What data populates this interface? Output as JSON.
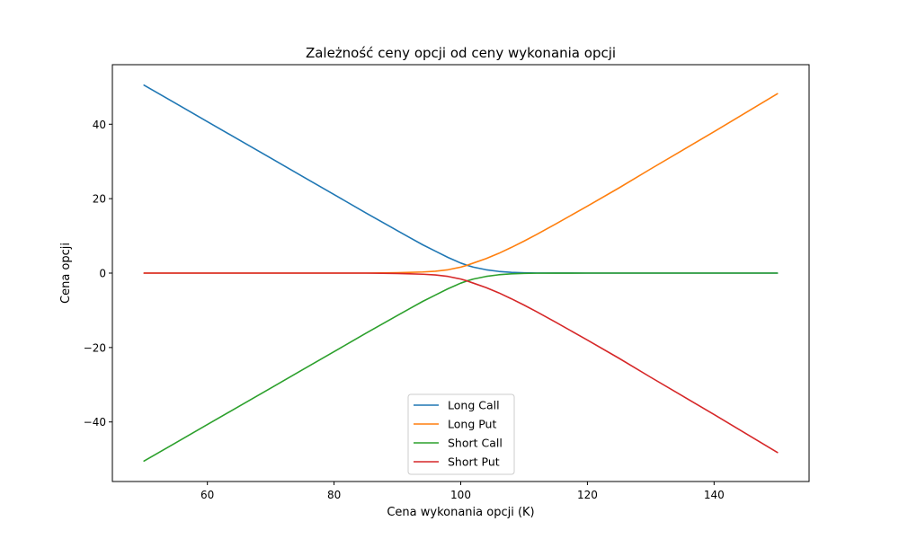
{
  "chart_data": {
    "type": "line",
    "title": "Zależność ceny opcji od ceny wykonania opcji",
    "xlabel": "Cena wykonania opcji (K)",
    "ylabel": "Cena opcji",
    "xlim": [
      45,
      155
    ],
    "ylim": [
      -56,
      56
    ],
    "xticks": [
      60,
      80,
      100,
      120,
      140
    ],
    "yticks": [
      -40,
      -20,
      0,
      20,
      40
    ],
    "xtick_labels": [
      "60",
      "80",
      "100",
      "120",
      "140"
    ],
    "ytick_labels": [
      "−40",
      "−20",
      "0",
      "20",
      "40"
    ],
    "grid": false,
    "legend_position": "lower-center",
    "x": [
      50,
      55,
      60,
      65,
      70,
      75,
      80,
      85,
      90,
      92,
      94,
      96,
      98,
      100,
      101,
      102,
      104,
      106,
      108,
      110,
      112,
      115,
      120,
      125,
      130,
      135,
      140,
      145,
      150
    ],
    "series": [
      {
        "name": "Long Call",
        "color": "#1f77b4",
        "values": [
          50.5,
          45.6,
          40.7,
          35.8,
          30.9,
          26.0,
          21.1,
          16.2,
          11.4,
          9.5,
          7.6,
          5.9,
          4.2,
          2.7,
          2.1,
          1.6,
          0.9,
          0.45,
          0.2,
          0.08,
          0.03,
          0.01,
          0,
          0,
          0,
          0,
          0,
          0,
          0
        ]
      },
      {
        "name": "Long Put",
        "color": "#ff7f0e",
        "values": [
          0,
          0,
          0,
          0,
          0,
          0,
          0,
          0,
          0.1,
          0.2,
          0.3,
          0.5,
          0.9,
          1.6,
          2.1,
          2.7,
          3.9,
          5.3,
          6.9,
          8.6,
          10.4,
          13.2,
          18.0,
          22.9,
          28.0,
          33.0,
          38.0,
          43.1,
          48.2
        ]
      },
      {
        "name": "Short Call",
        "color": "#2ca02c",
        "values": [
          -50.5,
          -45.6,
          -40.7,
          -35.8,
          -30.9,
          -26.0,
          -21.1,
          -16.2,
          -11.4,
          -9.5,
          -7.6,
          -5.9,
          -4.2,
          -2.7,
          -2.1,
          -1.6,
          -0.9,
          -0.45,
          -0.2,
          -0.08,
          -0.03,
          -0.01,
          0,
          0,
          0,
          0,
          0,
          0,
          0
        ]
      },
      {
        "name": "Short Put",
        "color": "#d62728",
        "values": [
          0,
          0,
          0,
          0,
          0,
          0,
          0,
          0,
          -0.1,
          -0.2,
          -0.3,
          -0.5,
          -0.9,
          -1.6,
          -2.1,
          -2.7,
          -3.9,
          -5.3,
          -6.9,
          -8.6,
          -10.4,
          -13.2,
          -18.0,
          -22.9,
          -28.0,
          -33.0,
          -38.0,
          -43.1,
          -48.2
        ]
      }
    ]
  }
}
